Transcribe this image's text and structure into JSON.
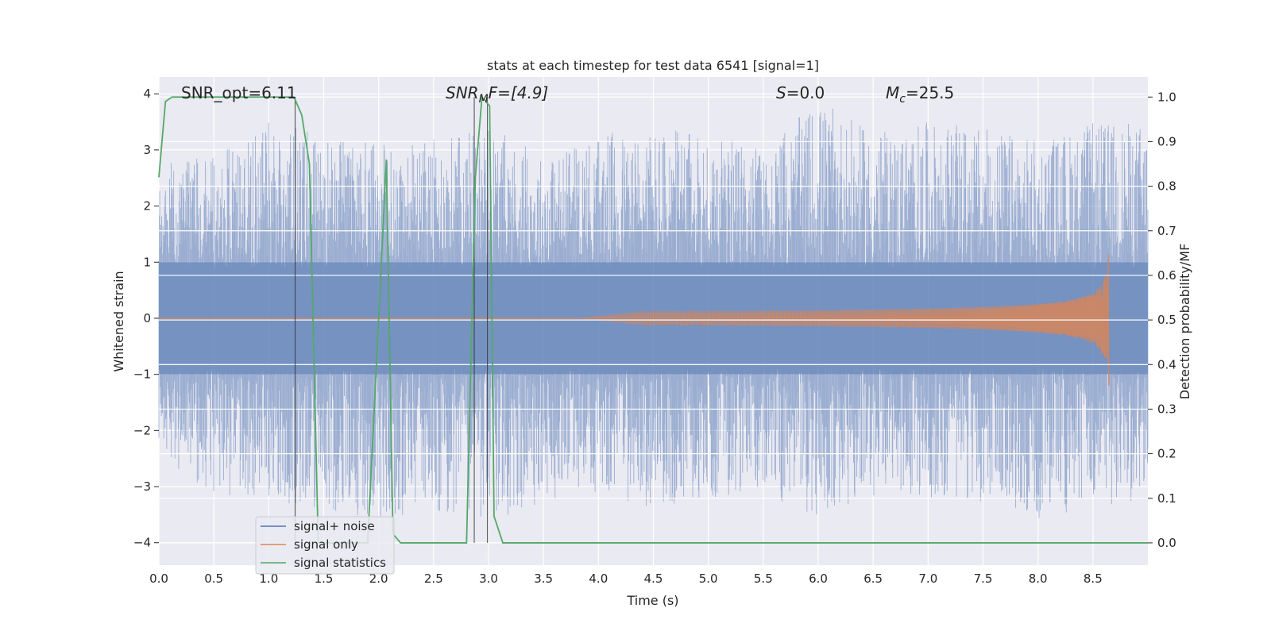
{
  "chart_data": {
    "type": "line",
    "title": "stats at each timestep for test data 6541 [signal=1]",
    "xlabel": "Time (s)",
    "ylabel": "Whitened strain",
    "y2label": "Detection probability/MF",
    "xlim": [
      0.0,
      9.0
    ],
    "ylim": [
      -4.4,
      4.3
    ],
    "y2lim": [
      -0.05,
      1.045
    ],
    "xticks": [
      "0.0",
      "0.5",
      "1.0",
      "1.5",
      "2.0",
      "2.5",
      "3.0",
      "3.5",
      "4.0",
      "4.5",
      "5.0",
      "5.5",
      "6.0",
      "6.5",
      "7.0",
      "7.5",
      "8.0",
      "8.5"
    ],
    "yticks": [
      "4",
      "3",
      "2",
      "1",
      "0",
      "−1",
      "−2",
      "−3",
      "−4"
    ],
    "y2ticks": [
      "0.0",
      "0.1",
      "0.2",
      "0.3",
      "0.4",
      "0.5",
      "0.6",
      "0.7",
      "0.8",
      "0.9",
      "1.0"
    ],
    "grid": true,
    "legend_position": "lower-left",
    "annotations": {
      "snr_opt": "SNR_opt=6.11",
      "snr_mf_sym": "SNR",
      "snr_mf_sub": "M",
      "snr_mf_rest": "F=[4.9]",
      "s_sym": "S",
      "s_rest": "=0.0",
      "mc_sym": "M",
      "mc_sub": "c",
      "mc_rest": "=25.5"
    },
    "vlines_x": [
      1.24,
      2.87,
      2.99
    ],
    "series": [
      {
        "name": "signal+ noise",
        "color": "#4c72b0",
        "description_values": "whitened strain noise, roughly within -3.7 to 3.9",
        "envelope_x": [
          0.0,
          0.5,
          1.0,
          1.5,
          2.0,
          2.5,
          3.0,
          3.5,
          4.0,
          4.5,
          5.0,
          5.5,
          6.0,
          6.5,
          7.0,
          7.5,
          8.0,
          8.5,
          9.0
        ],
        "envelope_max": [
          2.8,
          2.9,
          3.5,
          3.3,
          3.1,
          3.2,
          3.5,
          2.9,
          3.3,
          3.4,
          3.3,
          3.0,
          3.9,
          3.3,
          3.5,
          3.4,
          3.2,
          3.5,
          3.5
        ],
        "envelope_min": [
          -2.6,
          -3.1,
          -3.3,
          -3.4,
          -3.6,
          -3.4,
          -3.7,
          -3.3,
          -3.1,
          -3.4,
          -3.2,
          -3.1,
          -3.6,
          -3.2,
          -3.2,
          -3.3,
          -3.6,
          -3.4,
          -3.3
        ]
      },
      {
        "name": "signal only",
        "color": "#dd8452",
        "chirp_end_x": 8.65,
        "chirp_peak_amplitude": 1.5
      },
      {
        "name": "signal statistics",
        "color": "#55a868",
        "axis": "right",
        "x": [
          0.0,
          0.06,
          0.12,
          1.23,
          1.3,
          1.37,
          1.45,
          1.9,
          1.95,
          2.07,
          2.13,
          2.2,
          2.8,
          2.88,
          2.94,
          3.01,
          3.05,
          3.13,
          9.0
        ],
        "values": [
          0.82,
          0.99,
          1.0,
          1.0,
          0.96,
          0.85,
          0.0,
          0.0,
          0.25,
          0.86,
          0.02,
          0.0,
          0.0,
          0.82,
          1.0,
          0.98,
          0.06,
          0.0,
          0.0
        ]
      }
    ]
  }
}
